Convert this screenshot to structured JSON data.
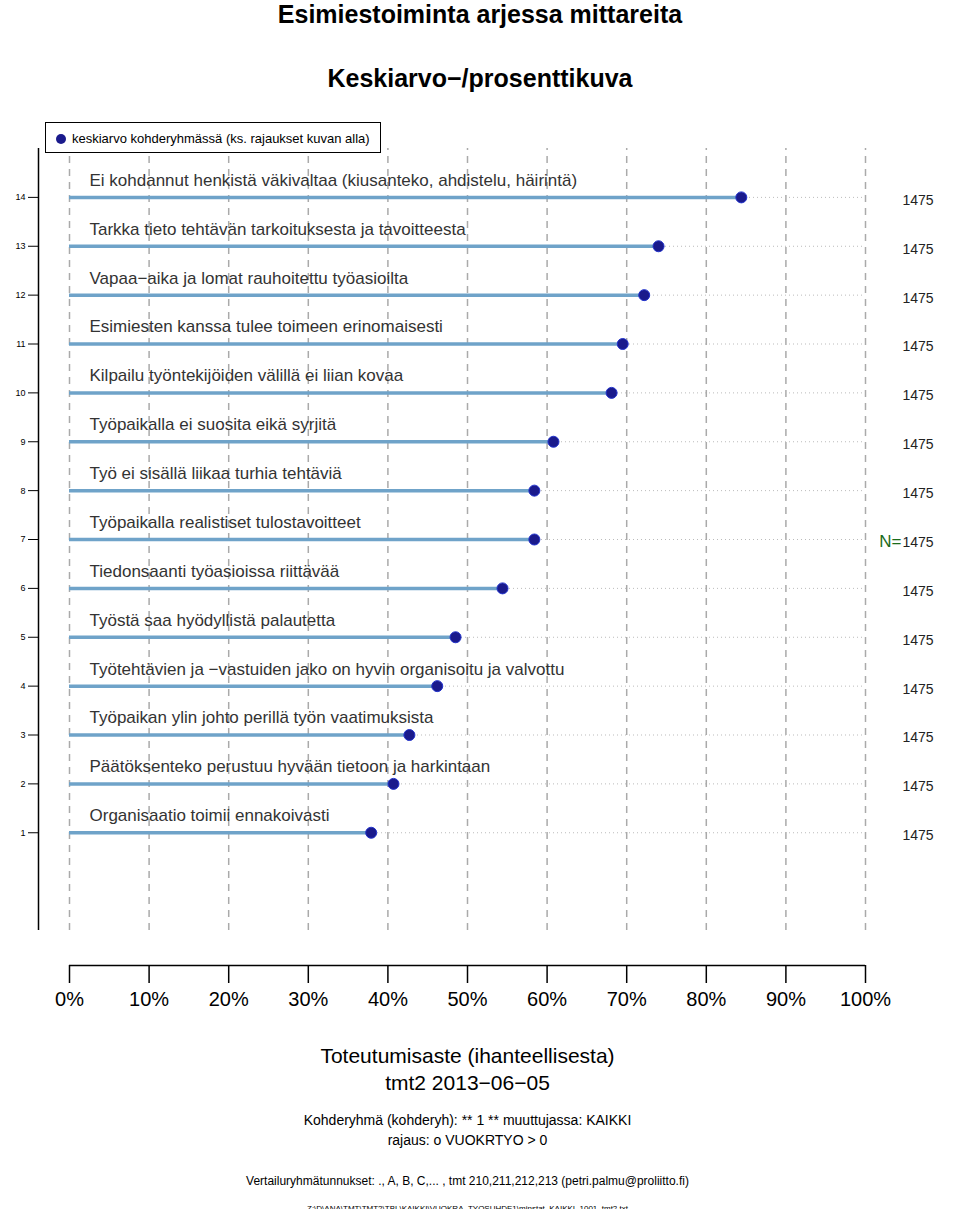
{
  "chart_data": {
    "type": "lollipop",
    "orientation": "horizontal",
    "title": "Esimiestoiminta arjessa mittareita",
    "subtitle": "Keskiarvo−/prosenttikuva",
    "x_label": "Toteutumisaste (ihanteellisesta)",
    "x_sublabel": "tmt2 2013−06−05",
    "captions": [
      "Kohderyhmä (kohderyh): ** 1 ** muuttujassa: KAIKKI",
      "rajaus: o VUOKRTYO > 0",
      "Vertailuryhmätunnukset: ., A, B, C,... , tmt 210,211,212,213 (petri.palmu@proliitto.fi)",
      "Z:\\D\\ANA\\TMT\\TMT2\\TBL\\KAIKKI\\VUOKRA_TYOSUHDE1\\minstat_KAIKKI_1001_tmt2.txt"
    ],
    "categories": [
      "Organisaatio toimii ennakoivasti",
      "Päätöksenteko perustuu hyvään tietoon ja harkintaan",
      "Työpaikan ylin johto perillä työn vaatimuksista",
      "Työtehtävien ja −vastuiden jako on hyvin organisoitu ja valvottu",
      "Työstä saa hyödyllistä palautetta",
      "Tiedonsaanti työasioissa riittävää",
      "Työpaikalla realistiset tulostavoitteet",
      "Työ ei sisällä liikaa turhia tehtäviä",
      "Työpaikalla ei suosita eikä syrjitä",
      "Kilpailu työntekijöiden välillä ei liian kovaa",
      "Esimiesten kanssa tulee toimeen erinomaisesti",
      "Vapaa−aika ja lomat rauhoitettu työasioilta",
      "Tarkka tieto tehtävän tarkoituksesta ja tavoitteesta",
      "Ei kohdannut henkistä väkivaltaa (kiusanteko, ahdistelu, häirintä)"
    ],
    "y": [
      1,
      2,
      3,
      4,
      5,
      6,
      7,
      8,
      9,
      10,
      11,
      12,
      13,
      14
    ],
    "series": [
      {
        "name": "keskiarvo kohderyhmässä (ks. rajaukset kuvan alla)",
        "color": "#1a1a8c",
        "values": [
          37.9,
          40.7,
          42.7,
          46.2,
          48.5,
          54.4,
          58.4,
          58.4,
          60.8,
          68.1,
          69.5,
          72.2,
          74.0,
          84.4
        ]
      }
    ],
    "n_label": "N=",
    "n": [
      1475,
      1475,
      1475,
      1475,
      1475,
      1475,
      1475,
      1475,
      1475,
      1475,
      1475,
      1475,
      1475,
      1475
    ],
    "xlim": [
      0,
      100
    ],
    "xticks": [
      {
        "value": 0,
        "label": "0%"
      },
      {
        "value": 10,
        "label": "10%"
      },
      {
        "value": 20,
        "label": "20%"
      },
      {
        "value": 30,
        "label": "30%"
      },
      {
        "value": 40,
        "label": "40%"
      },
      {
        "value": 50,
        "label": "50%"
      },
      {
        "value": 60,
        "label": "60%"
      },
      {
        "value": 70,
        "label": "70%"
      },
      {
        "value": 80,
        "label": "80%"
      },
      {
        "value": 90,
        "label": "90%"
      },
      {
        "value": 100,
        "label": "100%"
      }
    ],
    "ylim": [
      -1,
      15
    ],
    "yticks": [
      1,
      2,
      3,
      4,
      5,
      6,
      7,
      8,
      9,
      10,
      11,
      12,
      13,
      14
    ],
    "grid": true,
    "legend": "top-left"
  }
}
